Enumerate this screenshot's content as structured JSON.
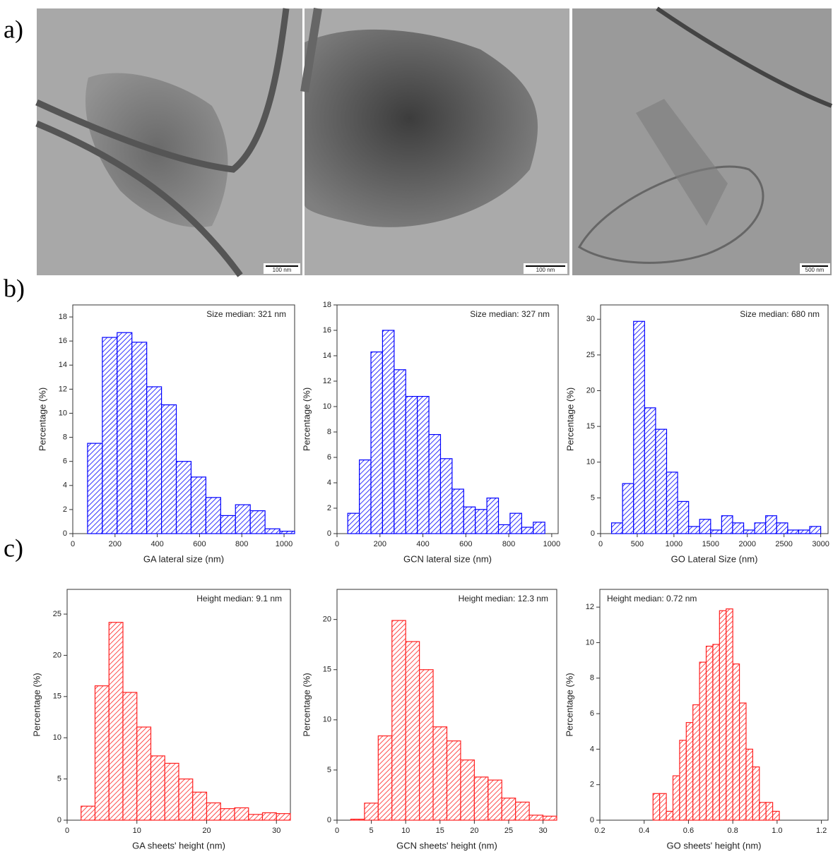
{
  "panels": [
    "a)",
    "b)",
    "c)"
  ],
  "images": [
    {
      "scale_bar": "100 nm"
    },
    {
      "scale_bar": "100 nm"
    },
    {
      "scale_bar": "500 nm"
    }
  ],
  "chart_data": [
    {
      "type": "histogram",
      "annotation": "Size median: 321 nm",
      "xlabel": "GA lateral size (nm)",
      "ylabel": "Percentage (%)",
      "color": "#0000ff",
      "bins": [
        70,
        140,
        210,
        280,
        350,
        420,
        490,
        560,
        630,
        700,
        770,
        840,
        910,
        980,
        1050
      ],
      "values": [
        7.5,
        16.3,
        16.7,
        15.9,
        12.2,
        10.7,
        6.0,
        4.7,
        3.0,
        1.5,
        2.4,
        1.9,
        0.4,
        0.2
      ],
      "xlim": [
        0,
        1050
      ],
      "ylim": [
        0,
        19
      ],
      "xticks": [
        0,
        200,
        400,
        600,
        800,
        1000
      ],
      "yticks": [
        0,
        2,
        4,
        6,
        8,
        10,
        12,
        14,
        16,
        18
      ]
    },
    {
      "type": "histogram",
      "annotation": "Size median: 327 nm",
      "xlabel": "GCN lateral size (nm)",
      "ylabel": "Percentage (%)",
      "color": "#0000ff",
      "bins": [
        50,
        104,
        158,
        212,
        266,
        320,
        374,
        428,
        482,
        536,
        590,
        644,
        698,
        752,
        806,
        860,
        914,
        968
      ],
      "values": [
        1.6,
        5.8,
        14.3,
        16.0,
        12.9,
        10.8,
        10.8,
        7.8,
        5.9,
        3.5,
        2.1,
        1.9,
        2.8,
        0.7,
        1.6,
        0.5,
        0.9
      ],
      "xlim": [
        0,
        1030
      ],
      "ylim": [
        0,
        18
      ],
      "xticks": [
        0,
        200,
        400,
        600,
        800,
        1000
      ],
      "yticks": [
        0,
        2,
        4,
        6,
        8,
        10,
        12,
        14,
        16,
        18
      ]
    },
    {
      "type": "histogram",
      "annotation": "Size median: 680 nm",
      "xlabel": "GO Lateral Size (nm)",
      "ylabel": "Percentage (%)",
      "color": "#0000ff",
      "bins": [
        150,
        300,
        450,
        600,
        750,
        900,
        1050,
        1200,
        1350,
        1500,
        1650,
        1800,
        1950,
        2100,
        2250,
        2400,
        2550,
        2700,
        2850,
        3000
      ],
      "values": [
        1.5,
        7.0,
        29.7,
        17.6,
        14.6,
        8.6,
        4.5,
        1.0,
        2.0,
        0.5,
        2.5,
        1.5,
        0.5,
        1.5,
        2.5,
        1.5,
        0.5,
        0.5,
        1.0
      ],
      "xlim": [
        0,
        3100
      ],
      "ylim": [
        0,
        32
      ],
      "xticks": [
        0,
        500,
        1000,
        1500,
        2000,
        2500,
        3000
      ],
      "yticks": [
        0,
        5,
        10,
        15,
        20,
        25,
        30
      ]
    },
    {
      "type": "histogram",
      "annotation": "Height median: 9.1 nm",
      "xlabel": "GA sheets' height (nm)",
      "ylabel": "Percentage (%)",
      "color": "#ff2020",
      "bins": [
        2,
        4,
        6,
        8,
        10,
        12,
        14,
        16,
        18,
        20,
        22,
        24,
        26,
        28,
        30,
        32
      ],
      "values": [
        1.7,
        16.3,
        24.0,
        15.5,
        11.3,
        7.8,
        6.9,
        5.0,
        3.4,
        2.1,
        1.4,
        1.5,
        0.7,
        0.9,
        0.8
      ],
      "xlim": [
        0,
        32
      ],
      "ylim": [
        0,
        28
      ],
      "xticks": [
        0,
        10,
        20,
        30
      ],
      "yticks": [
        0,
        5,
        10,
        15,
        20,
        25
      ]
    },
    {
      "type": "histogram",
      "annotation": "Height median: 12.3 nm",
      "xlabel": "GCN sheets' height (nm)",
      "ylabel": "Percentage (%)",
      "color": "#ff2020",
      "bins": [
        2,
        4,
        6,
        8,
        10,
        12,
        14,
        16,
        18,
        20,
        22,
        24,
        26,
        28,
        30,
        32
      ],
      "values": [
        0.1,
        1.7,
        8.4,
        19.9,
        17.8,
        15.0,
        9.3,
        7.9,
        6.0,
        4.3,
        4.0,
        2.2,
        1.8,
        0.5,
        0.4
      ],
      "xlim": [
        0,
        32
      ],
      "ylim": [
        0,
        23
      ],
      "xticks": [
        0,
        5,
        10,
        15,
        20,
        25,
        30
      ],
      "yticks": [
        0,
        5,
        10,
        15,
        20
      ]
    },
    {
      "type": "histogram",
      "annotation": "Height median: 0.72 nm",
      "xlabel": "GO sheets' height (nm)",
      "ylabel": "Percentage (%)",
      "color": "#ff2020",
      "bins": [
        0.44,
        0.47,
        0.5,
        0.53,
        0.56,
        0.59,
        0.62,
        0.65,
        0.68,
        0.71,
        0.74,
        0.77,
        0.8,
        0.83,
        0.86,
        0.89,
        0.92,
        0.95,
        0.98,
        1.01
      ],
      "values": [
        1.5,
        1.5,
        0.5,
        2.5,
        4.5,
        5.5,
        6.5,
        8.9,
        9.8,
        9.9,
        11.8,
        11.9,
        8.8,
        6.6,
        4.0,
        3.0,
        1.0,
        1.0,
        0.5
      ],
      "xlim": [
        0.2,
        1.23
      ],
      "ylim": [
        0,
        13
      ],
      "xticks": [
        0.2,
        0.4,
        0.6,
        0.8,
        {
          "value": 1,
          "label": "1.0"
        },
        1.2
      ],
      "yticks": [
        0,
        2,
        4,
        6,
        8,
        10,
        12
      ]
    }
  ]
}
